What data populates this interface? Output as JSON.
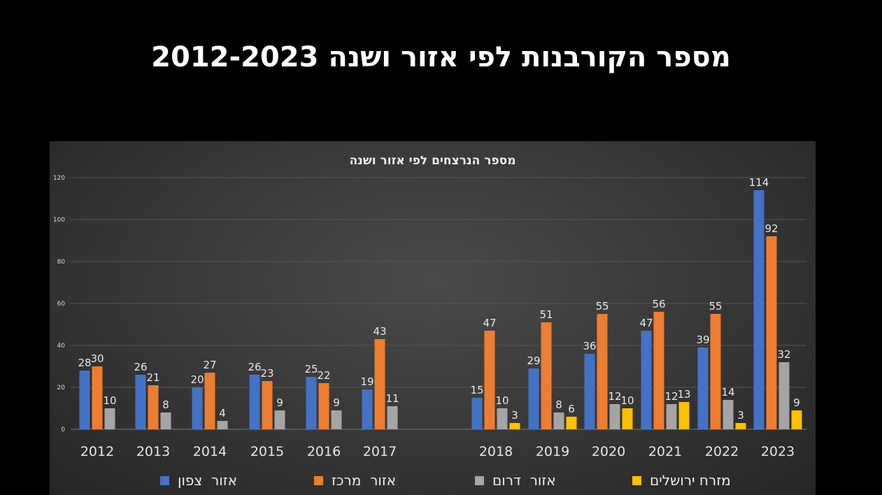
{
  "slide": {
    "title": "מספר הקורבנות לפי אזור ושנה 2012-2023"
  },
  "chart_data": {
    "type": "bar",
    "title": "מספר הנרצחים לפי אזור ושנה",
    "xlabel": "",
    "ylabel": "",
    "ylim": [
      0,
      120
    ],
    "yticks": [
      0,
      20,
      40,
      60,
      80,
      100,
      120
    ],
    "grid": true,
    "legend_position": "bottom",
    "categories": [
      "2012",
      "2013",
      "2014",
      "2015",
      "2016",
      "2017",
      "2018",
      "2019",
      "2020",
      "2021",
      "2022",
      "2023"
    ],
    "series": [
      {
        "name": "אזור  צפון",
        "color": "#4472C4",
        "values": [
          28,
          26,
          20,
          26,
          25,
          19,
          15,
          29,
          36,
          47,
          39,
          114
        ]
      },
      {
        "name": "אזור  מרכז",
        "color": "#ED7D31",
        "values": [
          30,
          21,
          27,
          23,
          22,
          43,
          47,
          51,
          55,
          56,
          55,
          92
        ]
      },
      {
        "name": "אזור  דרום",
        "color": "#A5A5A5",
        "values": [
          10,
          8,
          4,
          9,
          9,
          11,
          10,
          8,
          12,
          12,
          14,
          32
        ]
      },
      {
        "name": "מזרח ירושלים",
        "color": "#FFC000",
        "values": [
          null,
          null,
          null,
          null,
          null,
          null,
          3,
          6,
          10,
          13,
          3,
          9
        ]
      }
    ]
  }
}
